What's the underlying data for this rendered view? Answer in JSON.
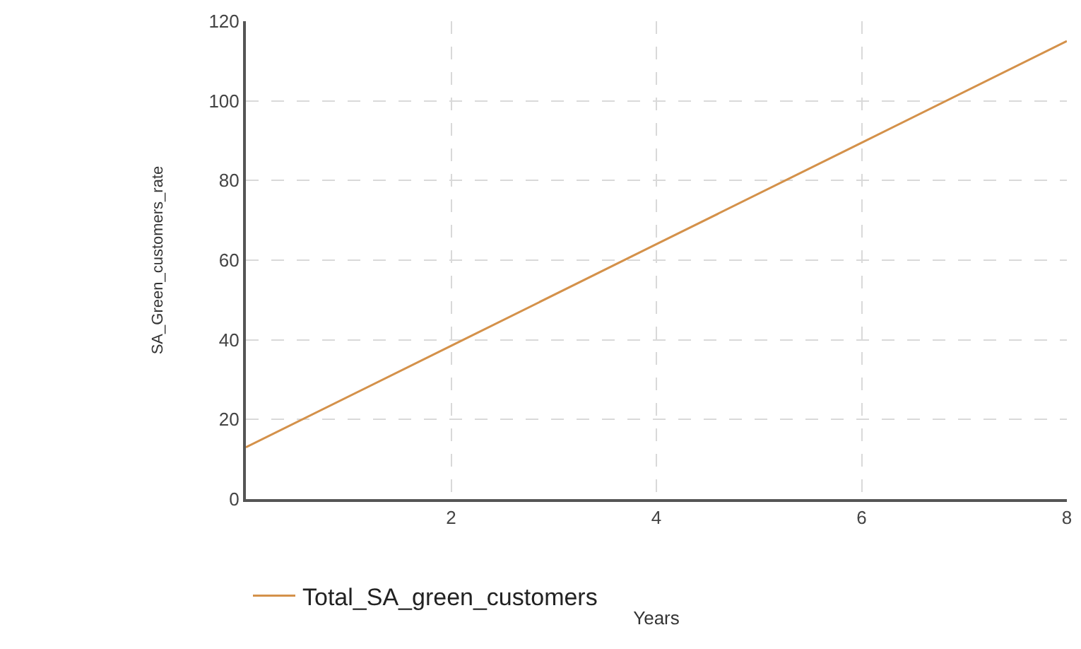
{
  "chart_data": {
    "type": "line",
    "xlabel": "Years",
    "ylabel": "SA_Green_customers_rate",
    "x": [
      0,
      2,
      4,
      6,
      8
    ],
    "series": [
      {
        "name": "Total_SA_green_customers",
        "color": "#d4914a",
        "values": [
          13,
          38.5,
          64,
          89.5,
          115
        ]
      }
    ],
    "xlim": [
      0,
      8
    ],
    "xticks": [
      2,
      4,
      6,
      8
    ],
    "ylim": [
      0,
      120
    ],
    "yticks": [
      0,
      20,
      40,
      60,
      80,
      100,
      120
    ],
    "grid": true,
    "legend": "bottom"
  }
}
